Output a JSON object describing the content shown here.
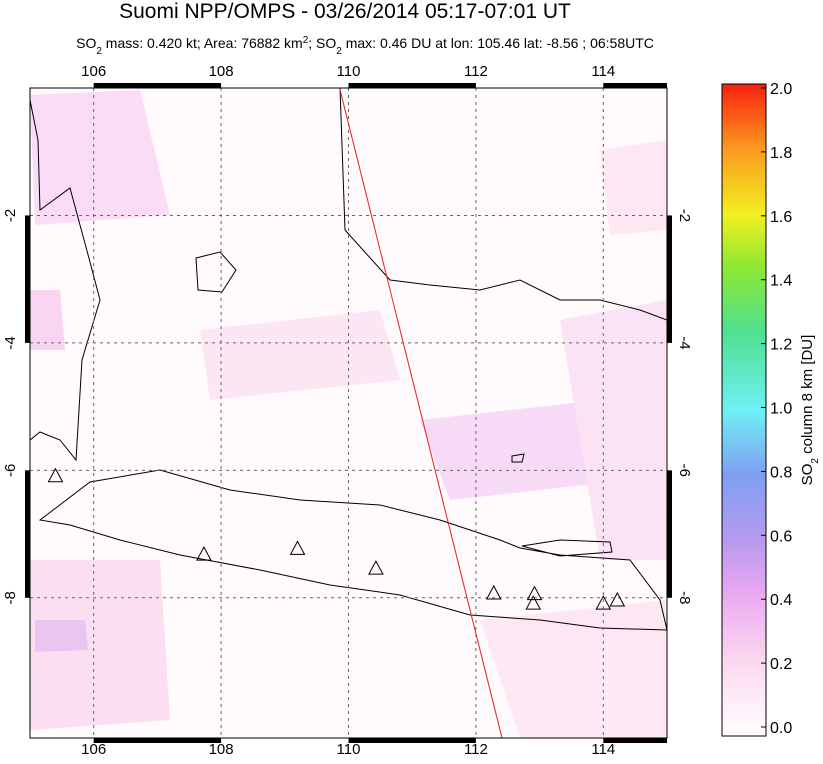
{
  "title": "Suomi NPP/OMPS - 03/26/2014 05:17-07:01 UT",
  "subtitle": [
    "SO",
    "2",
    " mass: 0.420 kt; Area: 76882 km",
    "2",
    "; SO",
    "2",
    " max: 0.46 DU at lon: 105.46 lat: -8.56 ; 06:58UTC"
  ],
  "map": {
    "xlim": [
      105,
      115
    ],
    "ylim": [
      -10.2,
      0
    ],
    "xticks": [
      106,
      108,
      110,
      112,
      114
    ],
    "yticks": [
      -2,
      -4,
      -6,
      -8
    ],
    "track": {
      "lon": [
        109.86,
        112.41
      ],
      "lat": [
        0,
        -10.2
      ],
      "color": "#e02020"
    },
    "volcanoes": {
      "lon": [
        105.4,
        107.73,
        109.2,
        110.43,
        112.28,
        112.92,
        112.9,
        114.0,
        114.22
      ],
      "lat": [
        -6.1,
        -7.33,
        -7.24,
        -7.55,
        -7.94,
        -7.95,
        -8.1,
        -8.1,
        -8.05
      ]
    }
  },
  "colorbar": {
    "label": [
      "SO",
      "2",
      " column 8 km [DU]"
    ],
    "lim": [
      0,
      2
    ],
    "ticks": [
      {
        "value": 0,
        "label": "0.0"
      },
      {
        "value": 0.2,
        "label": "0.2"
      },
      {
        "value": 0.4,
        "label": "0.4"
      },
      {
        "value": 0.6,
        "label": "0.6"
      },
      {
        "value": 0.8,
        "label": "0.8"
      },
      {
        "value": 1,
        "label": "1.0"
      },
      {
        "value": 1.2,
        "label": "1.2"
      },
      {
        "value": 1.4,
        "label": "1.4"
      },
      {
        "value": 1.6,
        "label": "1.6"
      },
      {
        "value": 1.8,
        "label": "1.8"
      },
      {
        "value": 2,
        "label": "2.0"
      }
    ]
  }
}
